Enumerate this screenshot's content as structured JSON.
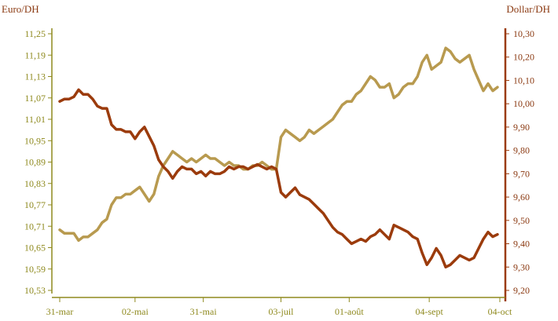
{
  "colors": {
    "euro_series": "#b89a4f",
    "dollar_series": "#9b3b0c",
    "left_axis": "#8f8a1f",
    "right_axis": "#9b3b0c",
    "left_tick_text": "#8f8a1f",
    "right_tick_text": "#8b3a12"
  },
  "chart_data": {
    "type": "line",
    "x_axis": {
      "tick_labels": [
        "31-mar",
        "02-mai",
        "31-mai",
        "03-juil",
        "01-août",
        "04-sept",
        "04-oct"
      ],
      "tick_positions": [
        0,
        32,
        61,
        94,
        123,
        157,
        187
      ],
      "range": [
        0,
        187
      ]
    },
    "y_left": {
      "label": "Euro/DH",
      "range": [
        10.53,
        11.25
      ],
      "tick_labels": [
        "11,25",
        "11,19",
        "11,13",
        "11,07",
        "11,01",
        "10,95",
        "10,89",
        "10,83",
        "10,77",
        "10,71",
        "10,65",
        "10,59",
        "10,53"
      ],
      "tick_values": [
        11.25,
        11.19,
        11.13,
        11.07,
        11.01,
        10.95,
        10.89,
        10.83,
        10.77,
        10.71,
        10.65,
        10.59,
        10.53
      ]
    },
    "y_right": {
      "label": "Dollar/DH",
      "range": [
        9.2,
        10.3
      ],
      "tick_labels": [
        "10,30",
        "10,20",
        "10,10",
        "10,00",
        "9,90",
        "9,80",
        "9,70",
        "9,60",
        "9,50",
        "9,40",
        "9,30",
        "9,20"
      ],
      "tick_values": [
        10.3,
        10.2,
        10.1,
        10.0,
        9.9,
        9.8,
        9.7,
        9.6,
        9.5,
        9.4,
        9.3,
        9.2
      ]
    },
    "grid": false,
    "legend": "none",
    "series": [
      {
        "axis": "left",
        "x": [
          0,
          2,
          4,
          6,
          8,
          10,
          12,
          14,
          16,
          18,
          20,
          22,
          24,
          26,
          28,
          30,
          32,
          34,
          36,
          38,
          40,
          42,
          44,
          46,
          48,
          50,
          52,
          54,
          56,
          58,
          60,
          62,
          64,
          66,
          68,
          70,
          72,
          74,
          76,
          78,
          80,
          82,
          84,
          86,
          88,
          90,
          92,
          94,
          96,
          98,
          100,
          102,
          104,
          106,
          108,
          110,
          112,
          114,
          116,
          118,
          120,
          122,
          124,
          126,
          128,
          130,
          132,
          134,
          136,
          138,
          140,
          142,
          144,
          146,
          148,
          150,
          152,
          154,
          156,
          158,
          160,
          162,
          164,
          166,
          168,
          170,
          172,
          174,
          176,
          178,
          180,
          182,
          184,
          186
        ],
        "values": [
          10.7,
          10.69,
          10.69,
          10.69,
          10.67,
          10.68,
          10.68,
          10.69,
          10.7,
          10.72,
          10.73,
          10.77,
          10.79,
          10.79,
          10.8,
          10.8,
          10.81,
          10.82,
          10.8,
          10.78,
          10.8,
          10.85,
          10.88,
          10.9,
          10.92,
          10.91,
          10.9,
          10.89,
          10.9,
          10.89,
          10.9,
          10.91,
          10.9,
          10.9,
          10.89,
          10.88,
          10.89,
          10.88,
          10.88,
          10.87,
          10.87,
          10.88,
          10.88,
          10.89,
          10.88,
          10.87,
          10.87,
          10.96,
          10.98,
          10.97,
          10.96,
          10.95,
          10.96,
          10.98,
          10.97,
          10.98,
          10.99,
          11.0,
          11.01,
          11.03,
          11.05,
          11.06,
          11.06,
          11.08,
          11.09,
          11.11,
          11.13,
          11.12,
          11.1,
          11.1,
          11.11,
          11.07,
          11.08,
          11.1,
          11.11,
          11.11,
          11.13,
          11.17,
          11.19,
          11.15,
          11.16,
          11.17,
          11.21,
          11.2,
          11.18,
          11.17,
          11.18,
          11.19,
          11.15,
          11.12,
          11.09,
          11.11,
          11.09,
          11.1
        ]
      },
      {
        "axis": "right",
        "x": [
          0,
          2,
          4,
          6,
          8,
          10,
          12,
          14,
          16,
          18,
          20,
          22,
          24,
          26,
          28,
          30,
          32,
          34,
          36,
          38,
          40,
          42,
          44,
          46,
          48,
          50,
          52,
          54,
          56,
          58,
          60,
          62,
          64,
          66,
          68,
          70,
          72,
          74,
          76,
          78,
          80,
          82,
          84,
          86,
          88,
          90,
          92,
          94,
          96,
          98,
          100,
          102,
          104,
          106,
          108,
          110,
          112,
          114,
          116,
          118,
          120,
          122,
          124,
          126,
          128,
          130,
          132,
          134,
          136,
          138,
          140,
          142,
          144,
          146,
          148,
          150,
          152,
          154,
          156,
          158,
          160,
          162,
          164,
          166,
          168,
          170,
          172,
          174,
          176,
          178,
          180,
          182,
          184,
          186
        ],
        "values": [
          10.01,
          10.02,
          10.02,
          10.03,
          10.06,
          10.04,
          10.04,
          10.02,
          9.99,
          9.98,
          9.98,
          9.91,
          9.89,
          9.89,
          9.88,
          9.88,
          9.85,
          9.88,
          9.9,
          9.86,
          9.82,
          9.76,
          9.73,
          9.71,
          9.68,
          9.71,
          9.73,
          9.72,
          9.72,
          9.7,
          9.71,
          9.69,
          9.71,
          9.7,
          9.7,
          9.71,
          9.73,
          9.72,
          9.73,
          9.73,
          9.72,
          9.73,
          9.74,
          9.73,
          9.72,
          9.73,
          9.72,
          9.62,
          9.6,
          9.62,
          9.64,
          9.61,
          9.6,
          9.59,
          9.57,
          9.55,
          9.53,
          9.5,
          9.47,
          9.45,
          9.44,
          9.42,
          9.4,
          9.41,
          9.42,
          9.41,
          9.43,
          9.44,
          9.46,
          9.44,
          9.42,
          9.48,
          9.47,
          9.46,
          9.45,
          9.43,
          9.42,
          9.36,
          9.31,
          9.34,
          9.38,
          9.35,
          9.3,
          9.31,
          9.33,
          9.35,
          9.34,
          9.33,
          9.34,
          9.38,
          9.42,
          9.45,
          9.43,
          9.44
        ]
      }
    ]
  }
}
